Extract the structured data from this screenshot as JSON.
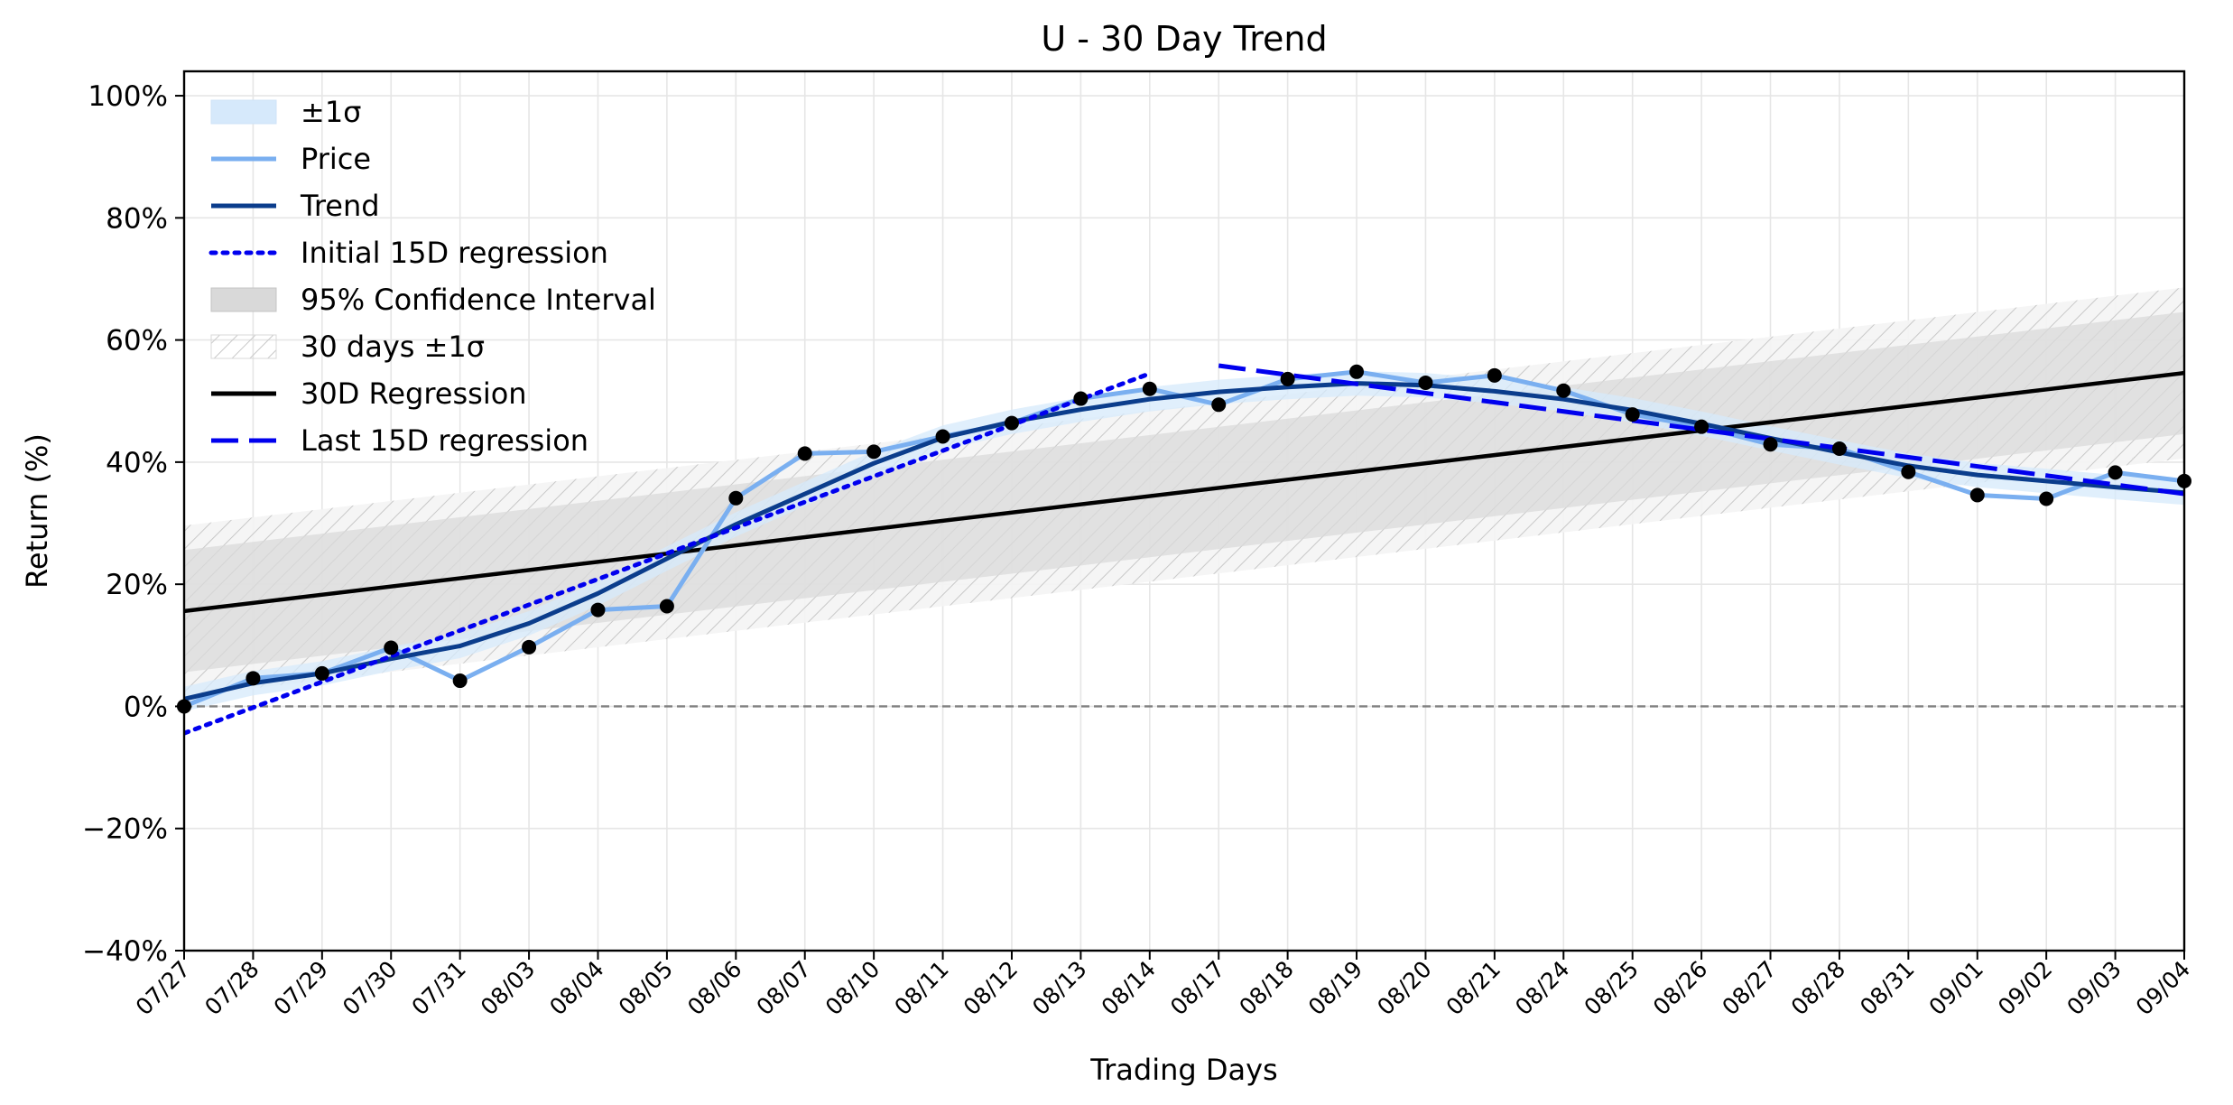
{
  "chart_data": {
    "type": "line",
    "title": "U - 30 Day Trend",
    "xlabel": "Trading Days",
    "ylabel": "Return (%)",
    "ylim": [
      -40,
      104
    ],
    "yticks": [
      -40,
      -20,
      0,
      20,
      40,
      60,
      80,
      100
    ],
    "ytick_labels": [
      "−40%",
      "−20%",
      "0%",
      "20%",
      "40%",
      "60%",
      "80%",
      "100%"
    ],
    "categories": [
      "07/27",
      "07/28",
      "07/29",
      "07/30",
      "07/31",
      "08/03",
      "08/04",
      "08/05",
      "08/06",
      "08/07",
      "08/10",
      "08/11",
      "08/12",
      "08/13",
      "08/14",
      "08/17",
      "08/18",
      "08/19",
      "08/20",
      "08/21",
      "08/24",
      "08/25",
      "08/26",
      "08/27",
      "08/28",
      "08/31",
      "09/01",
      "09/02",
      "09/03",
      "09/04"
    ],
    "grid": true,
    "legend_position": "upper-left",
    "legend": [
      "±1σ",
      "Price",
      "Trend",
      "Initial 15D regression",
      "95% Confidence Interval",
      "30 days ±1σ",
      "30D Regression",
      "Last 15D regression"
    ],
    "colors": {
      "price": "#7aaff0",
      "trend": "#0b3d8c",
      "sigma_band": "#d6e9fb",
      "regression_short": "#0000ee",
      "regression_30d": "#000000",
      "ci_band": "#d9d9d9",
      "zero_line": "#808080"
    },
    "series": [
      {
        "name": "Price",
        "values": [
          0.0,
          4.6,
          5.4,
          9.6,
          4.2,
          9.7,
          15.8,
          16.4,
          34.1,
          41.4,
          41.7,
          44.2,
          46.4,
          50.4,
          52.0,
          49.4,
          53.6,
          54.8,
          53.0,
          54.2,
          51.7,
          47.8,
          45.8,
          42.9,
          42.2,
          38.4,
          34.6,
          34.0,
          38.3,
          36.9
        ]
      },
      {
        "name": "Trend",
        "values": [
          1.2,
          3.8,
          5.4,
          7.8,
          9.9,
          13.6,
          18.5,
          24.2,
          29.8,
          34.8,
          39.8,
          44.0,
          46.6,
          48.6,
          50.3,
          51.5,
          52.3,
          52.9,
          52.6,
          51.6,
          50.3,
          48.5,
          46.3,
          43.9,
          41.6,
          39.4,
          37.9,
          36.9,
          35.9,
          35.0
        ]
      },
      {
        "name": "±1σ",
        "lower": [
          -0.8,
          1.8,
          3.4,
          5.8,
          7.9,
          11.6,
          16.5,
          22.2,
          27.8,
          32.8,
          37.8,
          42.0,
          44.6,
          46.6,
          48.3,
          49.5,
          50.3,
          50.9,
          50.6,
          49.6,
          48.3,
          46.5,
          44.3,
          41.9,
          39.6,
          37.4,
          35.9,
          34.9,
          33.9,
          33.0
        ],
        "upper": [
          3.2,
          5.8,
          7.4,
          9.8,
          11.9,
          15.6,
          20.5,
          26.2,
          31.8,
          36.8,
          41.8,
          46.0,
          48.6,
          50.6,
          52.3,
          53.5,
          54.3,
          54.9,
          54.6,
          53.6,
          52.3,
          50.5,
          48.3,
          45.9,
          43.6,
          41.4,
          39.9,
          38.9,
          37.9,
          37.0
        ]
      },
      {
        "name": "Initial 15D regression",
        "x_start": 0,
        "x_end": 14,
        "y_start": -4.4,
        "y_end": 54.5
      },
      {
        "name": "Last 15D regression",
        "x_start": 15,
        "x_end": 29,
        "y_start": 55.8,
        "y_end": 34.8
      },
      {
        "name": "30D Regression",
        "x_start": 0,
        "x_end": 29,
        "y_start": 15.6,
        "y_end": 54.6
      },
      {
        "name": "95% Confidence Interval",
        "lower_start": 5.6,
        "lower_end": 44.6,
        "upper_start": 25.6,
        "upper_end": 64.6
      },
      {
        "name": "30 days ±1σ",
        "lower_start": 1.6,
        "lower_end": 40.6,
        "upper_start": 29.6,
        "upper_end": 68.6
      }
    ]
  }
}
